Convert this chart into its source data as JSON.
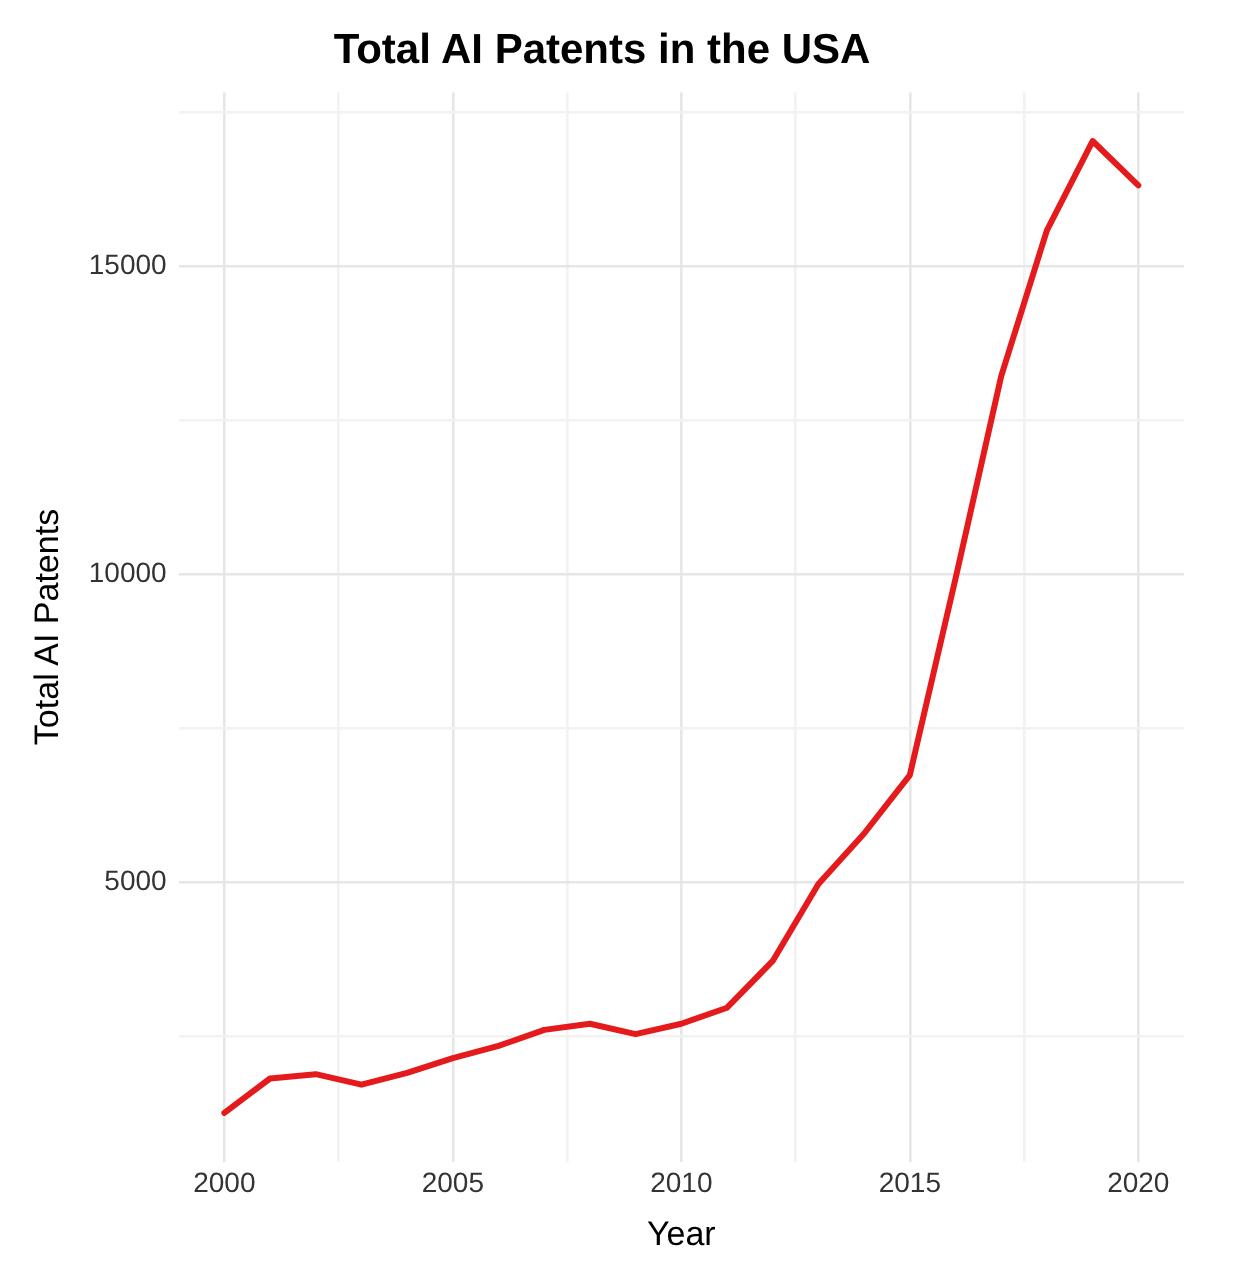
{
  "chart_data": {
    "type": "line",
    "title": "Total AI Patents in the USA",
    "xlabel": "Year",
    "ylabel": "Total AI Patents",
    "x": [
      2000,
      2001,
      2002,
      2003,
      2004,
      2005,
      2006,
      2007,
      2008,
      2009,
      2010,
      2011,
      2012,
      2013,
      2014,
      2015,
      2016,
      2017,
      2018,
      2019,
      2020
    ],
    "series": [
      {
        "color": "#e41a1c",
        "values": [
          1250,
          1810,
          1880,
          1710,
          1900,
          2140,
          2340,
          2600,
          2700,
          2530,
          2700,
          2960,
          3720,
          4970,
          5790,
          6740,
          9930,
          13220,
          15590,
          17040,
          16320
        ]
      }
    ],
    "xlim": [
      1999,
      2021
    ],
    "xticks": [
      {
        "value": 2000,
        "label": "2000"
      },
      {
        "value": 2002.5,
        "label": null
      },
      {
        "value": 2005,
        "label": "2005"
      },
      {
        "value": 2007.5,
        "label": null
      },
      {
        "value": 2010,
        "label": "2010"
      },
      {
        "value": 2012.5,
        "label": null
      },
      {
        "value": 2015,
        "label": "2015"
      },
      {
        "value": 2017.5,
        "label": null
      },
      {
        "value": 2020,
        "label": "2020"
      }
    ],
    "ylim": [
      460,
      17830
    ],
    "yticks": [
      {
        "value": 2500,
        "label": null
      },
      {
        "value": 5000,
        "label": "5000"
      },
      {
        "value": 7500,
        "label": null
      },
      {
        "value": 10000,
        "label": "10000"
      },
      {
        "value": 12500,
        "label": null
      },
      {
        "value": 15000,
        "label": "15000"
      },
      {
        "value": 17500,
        "label": null
      }
    ],
    "grid": true,
    "legend": false,
    "marker": "none",
    "line_style": "solid"
  }
}
